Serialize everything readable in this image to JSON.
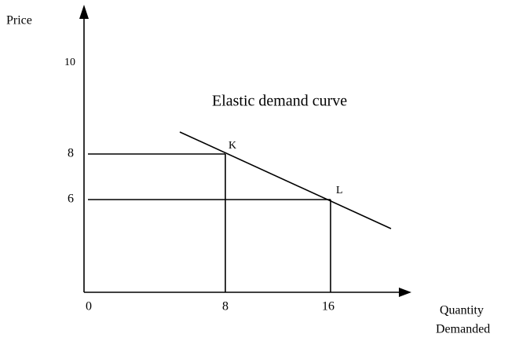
{
  "y_axis": {
    "label": "Price",
    "ticks": [
      "10",
      "8",
      "6"
    ]
  },
  "x_axis": {
    "label_lines": [
      "Quantity",
      "Demanded"
    ],
    "ticks": [
      "0",
      "8",
      "16"
    ]
  },
  "curve_label": "Elastic demand curve",
  "points": [
    {
      "label": "K"
    },
    {
      "label": "L"
    }
  ]
}
